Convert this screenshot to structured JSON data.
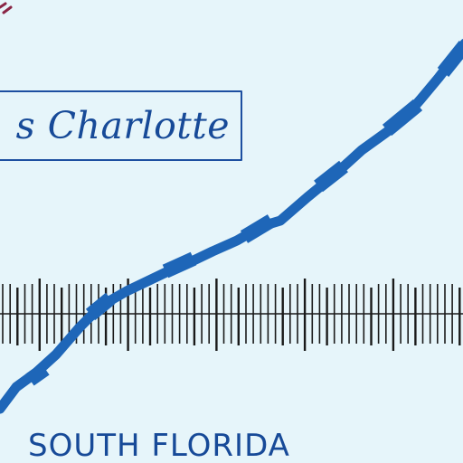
{
  "map": {
    "place_label": "s Charlotte",
    "region_label": "SOUTH FLORIDA"
  },
  "colors": {
    "background": "#e6f5fa",
    "label_ink": "#174a98",
    "route_line": "#1e66b8",
    "scale_bar": "#1a1a1a",
    "corner_mark": "#8a2545"
  }
}
